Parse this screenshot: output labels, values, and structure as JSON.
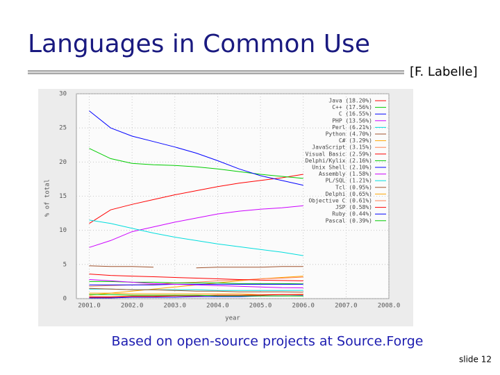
{
  "slide": {
    "title": "Languages in Common Use",
    "attribution": "[F. Labelle]",
    "caption": "Based on open-source projects at Source.Forge",
    "number": "slide 12"
  },
  "chart_data": {
    "type": "line",
    "xlabel": "year",
    "ylabel": "% of total",
    "x": [
      2001.0,
      2001.5,
      2002.0,
      2002.5,
      2003.0,
      2003.5,
      2004.0,
      2004.5,
      2005.0,
      2005.5,
      2006.0
    ],
    "xlim": [
      2000.7,
      2008.0
    ],
    "xticks": [
      {
        "value": 2001,
        "label": "2001.0"
      },
      {
        "value": 2002,
        "label": "2002.0"
      },
      {
        "value": 2003,
        "label": "2003.0"
      },
      {
        "value": 2004,
        "label": "2004.0"
      },
      {
        "value": 2005,
        "label": "2005.0"
      },
      {
        "value": 2006,
        "label": "2006.0"
      },
      {
        "value": 2007,
        "label": "2007.0"
      },
      {
        "value": 2008,
        "label": "2008.0"
      }
    ],
    "ylim": [
      0,
      30
    ],
    "yticks": [
      0,
      5,
      10,
      15,
      20,
      25,
      30
    ],
    "grid": true,
    "series": [
      {
        "name": "Java (18.20%)",
        "color": "#ff0000",
        "values": [
          11,
          13,
          13.8,
          14.5,
          15.2,
          15.8,
          16.4,
          16.9,
          17.3,
          17.7,
          18.2
        ]
      },
      {
        "name": "C++ (17.56%)",
        "color": "#00cc00",
        "values": [
          22,
          20.5,
          19.8,
          19.6,
          19.5,
          19.3,
          19,
          18.6,
          18.2,
          17.9,
          17.6
        ]
      },
      {
        "name": "C (16.55%)",
        "color": "#0000ff",
        "values": [
          27.5,
          25,
          23.8,
          23,
          22.2,
          21.3,
          20.2,
          19,
          18,
          17.3,
          16.6
        ]
      },
      {
        "name": "PHP (13.56%)",
        "color": "#cc00ff",
        "values": [
          7.5,
          8.5,
          9.8,
          10.5,
          11.2,
          11.8,
          12.4,
          12.8,
          13.1,
          13.3,
          13.6
        ]
      },
      {
        "name": "Perl (6.21%)",
        "color": "#00dddd",
        "values": [
          11.5,
          11,
          10.3,
          9.6,
          9,
          8.5,
          8,
          7.6,
          7.2,
          6.8,
          6.3
        ]
      },
      {
        "name": "Python (4.70%)",
        "color": "#a0522d",
        "values": [
          4.8,
          4.7,
          4.7,
          4.6,
          null,
          4.5,
          4.6,
          4.6,
          4.6,
          4.7,
          4.7
        ]
      },
      {
        "name": "C# (3.29%)",
        "color": "#ffa500",
        "values": [
          0.5,
          0.8,
          1.1,
          1.4,
          1.7,
          2.0,
          2.3,
          2.6,
          2.9,
          3.1,
          3.3
        ]
      },
      {
        "name": "JavaScript (3.15%)",
        "color": "#ff7f50",
        "values": [
          1.8,
          1.9,
          2.0,
          2.1,
          2.3,
          2.4,
          2.6,
          2.7,
          2.9,
          3.0,
          3.15
        ]
      },
      {
        "name": "Visual Basic (2.59%)",
        "color": "#ff0000",
        "values": [
          3.6,
          3.4,
          3.3,
          3.2,
          3.1,
          3.0,
          2.9,
          2.8,
          2.7,
          2.65,
          2.6
        ]
      },
      {
        "name": "Delphi/Kylix (2.16%)",
        "color": "#00cc00",
        "values": [
          2.5,
          2.5,
          2.4,
          2.4,
          2.3,
          2.3,
          2.3,
          2.2,
          2.2,
          2.2,
          2.16
        ]
      },
      {
        "name": "Unix Shell (2.10%)",
        "color": "#0000ff",
        "values": [
          2.0,
          2.0,
          2.0,
          2.0,
          2.1,
          2.1,
          2.1,
          2.1,
          2.1,
          2.1,
          2.1
        ]
      },
      {
        "name": "Assembly (1.58%)",
        "color": "#cc00ff",
        "values": [
          2.8,
          2.6,
          2.4,
          2.2,
          2.1,
          2.0,
          1.9,
          1.8,
          1.7,
          1.6,
          1.58
        ]
      },
      {
        "name": "PL/SQL (1.21%)",
        "color": "#00dddd",
        "values": [
          1.4,
          1.4,
          1.3,
          1.3,
          1.3,
          1.3,
          1.2,
          1.2,
          1.2,
          1.2,
          1.21
        ]
      },
      {
        "name": "Tcl (0.95%)",
        "color": "#a0522d",
        "values": [
          1.5,
          1.4,
          1.3,
          1.3,
          1.2,
          1.1,
          1.1,
          1.0,
          1.0,
          1.0,
          0.95
        ]
      },
      {
        "name": "Delphi (0.65%)",
        "color": "#ffa500",
        "values": [
          0.8,
          0.8,
          0.7,
          0.7,
          0.7,
          0.7,
          0.7,
          0.7,
          0.6,
          0.6,
          0.65
        ]
      },
      {
        "name": "Objective C (0.61%)",
        "color": "#ff7f50",
        "values": [
          0.3,
          0.3,
          0.4,
          0.4,
          0.4,
          0.5,
          0.5,
          0.5,
          0.6,
          0.6,
          0.61
        ]
      },
      {
        "name": "JSP (0.58%)",
        "color": "#ff0000",
        "values": [
          0.2,
          0.2,
          0.3,
          0.3,
          0.4,
          0.4,
          0.5,
          0.5,
          0.5,
          0.6,
          0.58
        ]
      },
      {
        "name": "Ruby (0.44%)",
        "color": "#0000ff",
        "values": [
          0.1,
          0.1,
          0.2,
          0.2,
          0.2,
          0.3,
          0.3,
          0.3,
          0.4,
          0.4,
          0.44
        ]
      },
      {
        "name": "Pascal (0.39%)",
        "color": "#00cc00",
        "values": [
          0.6,
          0.6,
          0.5,
          0.5,
          0.5,
          0.5,
          0.4,
          0.4,
          0.4,
          0.4,
          0.39
        ]
      }
    ]
  }
}
